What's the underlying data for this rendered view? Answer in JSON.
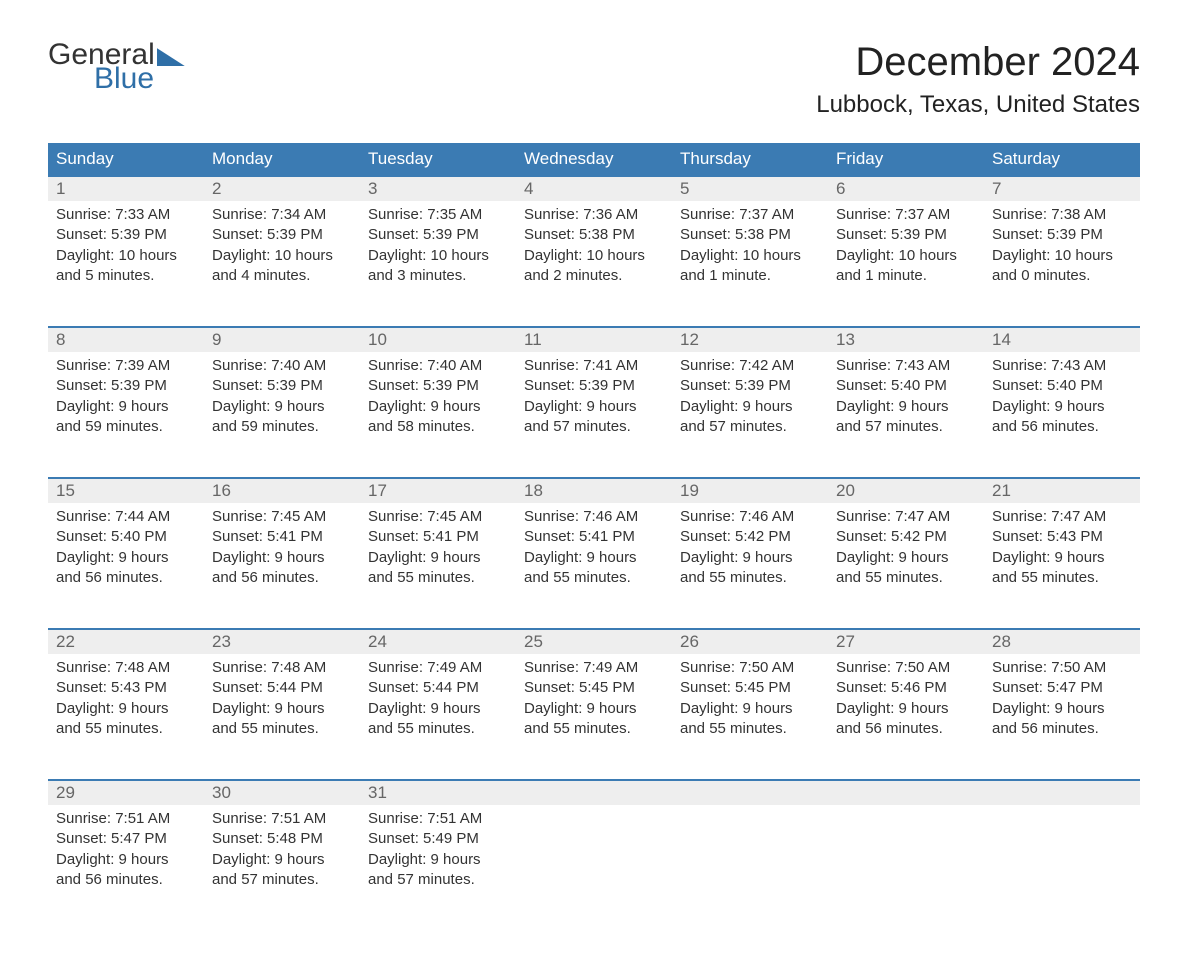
{
  "logo": {
    "word1": "General",
    "word2": "Blue"
  },
  "title": "December 2024",
  "location": "Lubbock, Texas, United States",
  "style": {
    "accent": "#3b7bb3",
    "accent_dark": "#2f6fa7",
    "header_bg": "#3b7bb3",
    "header_text": "#ffffff",
    "daynum_bg": "#eeeeee",
    "daynum_text": "#666666",
    "body_text": "#333333",
    "page_bg": "#ffffff",
    "title_fontsize": 40,
    "location_fontsize": 24,
    "dayheader_fontsize": 17,
    "cell_fontsize": 15
  },
  "day_headers": [
    "Sunday",
    "Monday",
    "Tuesday",
    "Wednesday",
    "Thursday",
    "Friday",
    "Saturday"
  ],
  "weeks": [
    [
      {
        "n": "1",
        "sunrise": "Sunrise: 7:33 AM",
        "sunset": "Sunset: 5:39 PM",
        "daylight1": "Daylight: 10 hours",
        "daylight2": "and 5 minutes."
      },
      {
        "n": "2",
        "sunrise": "Sunrise: 7:34 AM",
        "sunset": "Sunset: 5:39 PM",
        "daylight1": "Daylight: 10 hours",
        "daylight2": "and 4 minutes."
      },
      {
        "n": "3",
        "sunrise": "Sunrise: 7:35 AM",
        "sunset": "Sunset: 5:39 PM",
        "daylight1": "Daylight: 10 hours",
        "daylight2": "and 3 minutes."
      },
      {
        "n": "4",
        "sunrise": "Sunrise: 7:36 AM",
        "sunset": "Sunset: 5:38 PM",
        "daylight1": "Daylight: 10 hours",
        "daylight2": "and 2 minutes."
      },
      {
        "n": "5",
        "sunrise": "Sunrise: 7:37 AM",
        "sunset": "Sunset: 5:38 PM",
        "daylight1": "Daylight: 10 hours",
        "daylight2": "and 1 minute."
      },
      {
        "n": "6",
        "sunrise": "Sunrise: 7:37 AM",
        "sunset": "Sunset: 5:39 PM",
        "daylight1": "Daylight: 10 hours",
        "daylight2": "and 1 minute."
      },
      {
        "n": "7",
        "sunrise": "Sunrise: 7:38 AM",
        "sunset": "Sunset: 5:39 PM",
        "daylight1": "Daylight: 10 hours",
        "daylight2": "and 0 minutes."
      }
    ],
    [
      {
        "n": "8",
        "sunrise": "Sunrise: 7:39 AM",
        "sunset": "Sunset: 5:39 PM",
        "daylight1": "Daylight: 9 hours",
        "daylight2": "and 59 minutes."
      },
      {
        "n": "9",
        "sunrise": "Sunrise: 7:40 AM",
        "sunset": "Sunset: 5:39 PM",
        "daylight1": "Daylight: 9 hours",
        "daylight2": "and 59 minutes."
      },
      {
        "n": "10",
        "sunrise": "Sunrise: 7:40 AM",
        "sunset": "Sunset: 5:39 PM",
        "daylight1": "Daylight: 9 hours",
        "daylight2": "and 58 minutes."
      },
      {
        "n": "11",
        "sunrise": "Sunrise: 7:41 AM",
        "sunset": "Sunset: 5:39 PM",
        "daylight1": "Daylight: 9 hours",
        "daylight2": "and 57 minutes."
      },
      {
        "n": "12",
        "sunrise": "Sunrise: 7:42 AM",
        "sunset": "Sunset: 5:39 PM",
        "daylight1": "Daylight: 9 hours",
        "daylight2": "and 57 minutes."
      },
      {
        "n": "13",
        "sunrise": "Sunrise: 7:43 AM",
        "sunset": "Sunset: 5:40 PM",
        "daylight1": "Daylight: 9 hours",
        "daylight2": "and 57 minutes."
      },
      {
        "n": "14",
        "sunrise": "Sunrise: 7:43 AM",
        "sunset": "Sunset: 5:40 PM",
        "daylight1": "Daylight: 9 hours",
        "daylight2": "and 56 minutes."
      }
    ],
    [
      {
        "n": "15",
        "sunrise": "Sunrise: 7:44 AM",
        "sunset": "Sunset: 5:40 PM",
        "daylight1": "Daylight: 9 hours",
        "daylight2": "and 56 minutes."
      },
      {
        "n": "16",
        "sunrise": "Sunrise: 7:45 AM",
        "sunset": "Sunset: 5:41 PM",
        "daylight1": "Daylight: 9 hours",
        "daylight2": "and 56 minutes."
      },
      {
        "n": "17",
        "sunrise": "Sunrise: 7:45 AM",
        "sunset": "Sunset: 5:41 PM",
        "daylight1": "Daylight: 9 hours",
        "daylight2": "and 55 minutes."
      },
      {
        "n": "18",
        "sunrise": "Sunrise: 7:46 AM",
        "sunset": "Sunset: 5:41 PM",
        "daylight1": "Daylight: 9 hours",
        "daylight2": "and 55 minutes."
      },
      {
        "n": "19",
        "sunrise": "Sunrise: 7:46 AM",
        "sunset": "Sunset: 5:42 PM",
        "daylight1": "Daylight: 9 hours",
        "daylight2": "and 55 minutes."
      },
      {
        "n": "20",
        "sunrise": "Sunrise: 7:47 AM",
        "sunset": "Sunset: 5:42 PM",
        "daylight1": "Daylight: 9 hours",
        "daylight2": "and 55 minutes."
      },
      {
        "n": "21",
        "sunrise": "Sunrise: 7:47 AM",
        "sunset": "Sunset: 5:43 PM",
        "daylight1": "Daylight: 9 hours",
        "daylight2": "and 55 minutes."
      }
    ],
    [
      {
        "n": "22",
        "sunrise": "Sunrise: 7:48 AM",
        "sunset": "Sunset: 5:43 PM",
        "daylight1": "Daylight: 9 hours",
        "daylight2": "and 55 minutes."
      },
      {
        "n": "23",
        "sunrise": "Sunrise: 7:48 AM",
        "sunset": "Sunset: 5:44 PM",
        "daylight1": "Daylight: 9 hours",
        "daylight2": "and 55 minutes."
      },
      {
        "n": "24",
        "sunrise": "Sunrise: 7:49 AM",
        "sunset": "Sunset: 5:44 PM",
        "daylight1": "Daylight: 9 hours",
        "daylight2": "and 55 minutes."
      },
      {
        "n": "25",
        "sunrise": "Sunrise: 7:49 AM",
        "sunset": "Sunset: 5:45 PM",
        "daylight1": "Daylight: 9 hours",
        "daylight2": "and 55 minutes."
      },
      {
        "n": "26",
        "sunrise": "Sunrise: 7:50 AM",
        "sunset": "Sunset: 5:45 PM",
        "daylight1": "Daylight: 9 hours",
        "daylight2": "and 55 minutes."
      },
      {
        "n": "27",
        "sunrise": "Sunrise: 7:50 AM",
        "sunset": "Sunset: 5:46 PM",
        "daylight1": "Daylight: 9 hours",
        "daylight2": "and 56 minutes."
      },
      {
        "n": "28",
        "sunrise": "Sunrise: 7:50 AM",
        "sunset": "Sunset: 5:47 PM",
        "daylight1": "Daylight: 9 hours",
        "daylight2": "and 56 minutes."
      }
    ],
    [
      {
        "n": "29",
        "sunrise": "Sunrise: 7:51 AM",
        "sunset": "Sunset: 5:47 PM",
        "daylight1": "Daylight: 9 hours",
        "daylight2": "and 56 minutes."
      },
      {
        "n": "30",
        "sunrise": "Sunrise: 7:51 AM",
        "sunset": "Sunset: 5:48 PM",
        "daylight1": "Daylight: 9 hours",
        "daylight2": "and 57 minutes."
      },
      {
        "n": "31",
        "sunrise": "Sunrise: 7:51 AM",
        "sunset": "Sunset: 5:49 PM",
        "daylight1": "Daylight: 9 hours",
        "daylight2": "and 57 minutes."
      },
      null,
      null,
      null,
      null
    ]
  ]
}
